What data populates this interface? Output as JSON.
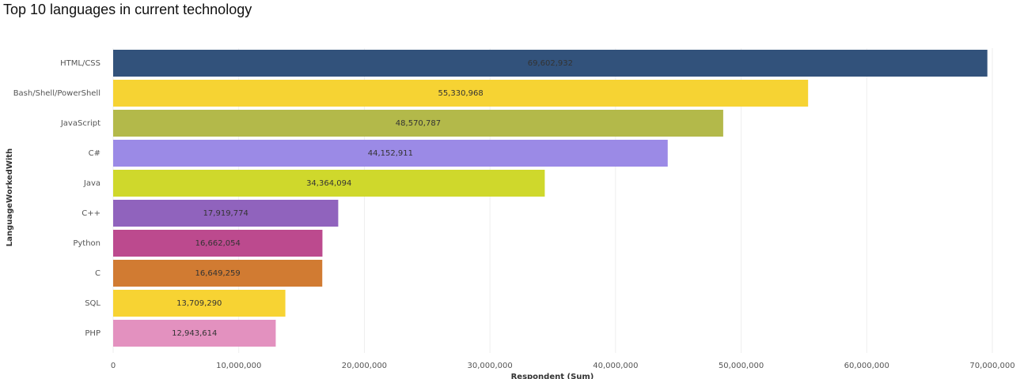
{
  "chart_data": {
    "type": "bar",
    "orientation": "horizontal",
    "title": "Top 10 languages in current technology",
    "x_label": "Respondent (Sum)",
    "y_label": "LanguageWorkedWith",
    "categories": [
      "HTML/CSS",
      "Bash/Shell/PowerShell",
      "JavaScript",
      "C#",
      "Java",
      "C++",
      "Python",
      "C",
      "SQL",
      "PHP"
    ],
    "values": [
      69602932,
      55330968,
      48570787,
      44152911,
      34364094,
      17919774,
      16662054,
      16649259,
      13709290,
      12943614
    ],
    "value_labels": [
      "69,602,932",
      "55,330,968",
      "48,570,787",
      "44,152,911",
      "34,364,094",
      "17,919,774",
      "16,662,054",
      "16,649,259",
      "13,709,290",
      "12,943,614"
    ],
    "colors": [
      "#32527b",
      "#f6d333",
      "#b3b94a",
      "#9b8ae6",
      "#cfd82c",
      "#9063bd",
      "#bc4a8e",
      "#d17b32",
      "#f7d333",
      "#e391bf"
    ],
    "xlim": [
      0,
      70000000
    ],
    "xticks": [
      0,
      {
        "value": 10000000,
        "label": "10,000,000"
      },
      {
        "value": 20000000,
        "label": "20,000,000"
      },
      {
        "value": 30000000,
        "label": "30,000,000"
      },
      {
        "value": 40000000,
        "label": "40,000,000"
      },
      {
        "value": 50000000,
        "label": "50,000,000"
      },
      {
        "value": 60000000,
        "label": "60,000,000"
      },
      {
        "value": 70000000,
        "label": "70,000,000"
      }
    ],
    "grid": true
  }
}
